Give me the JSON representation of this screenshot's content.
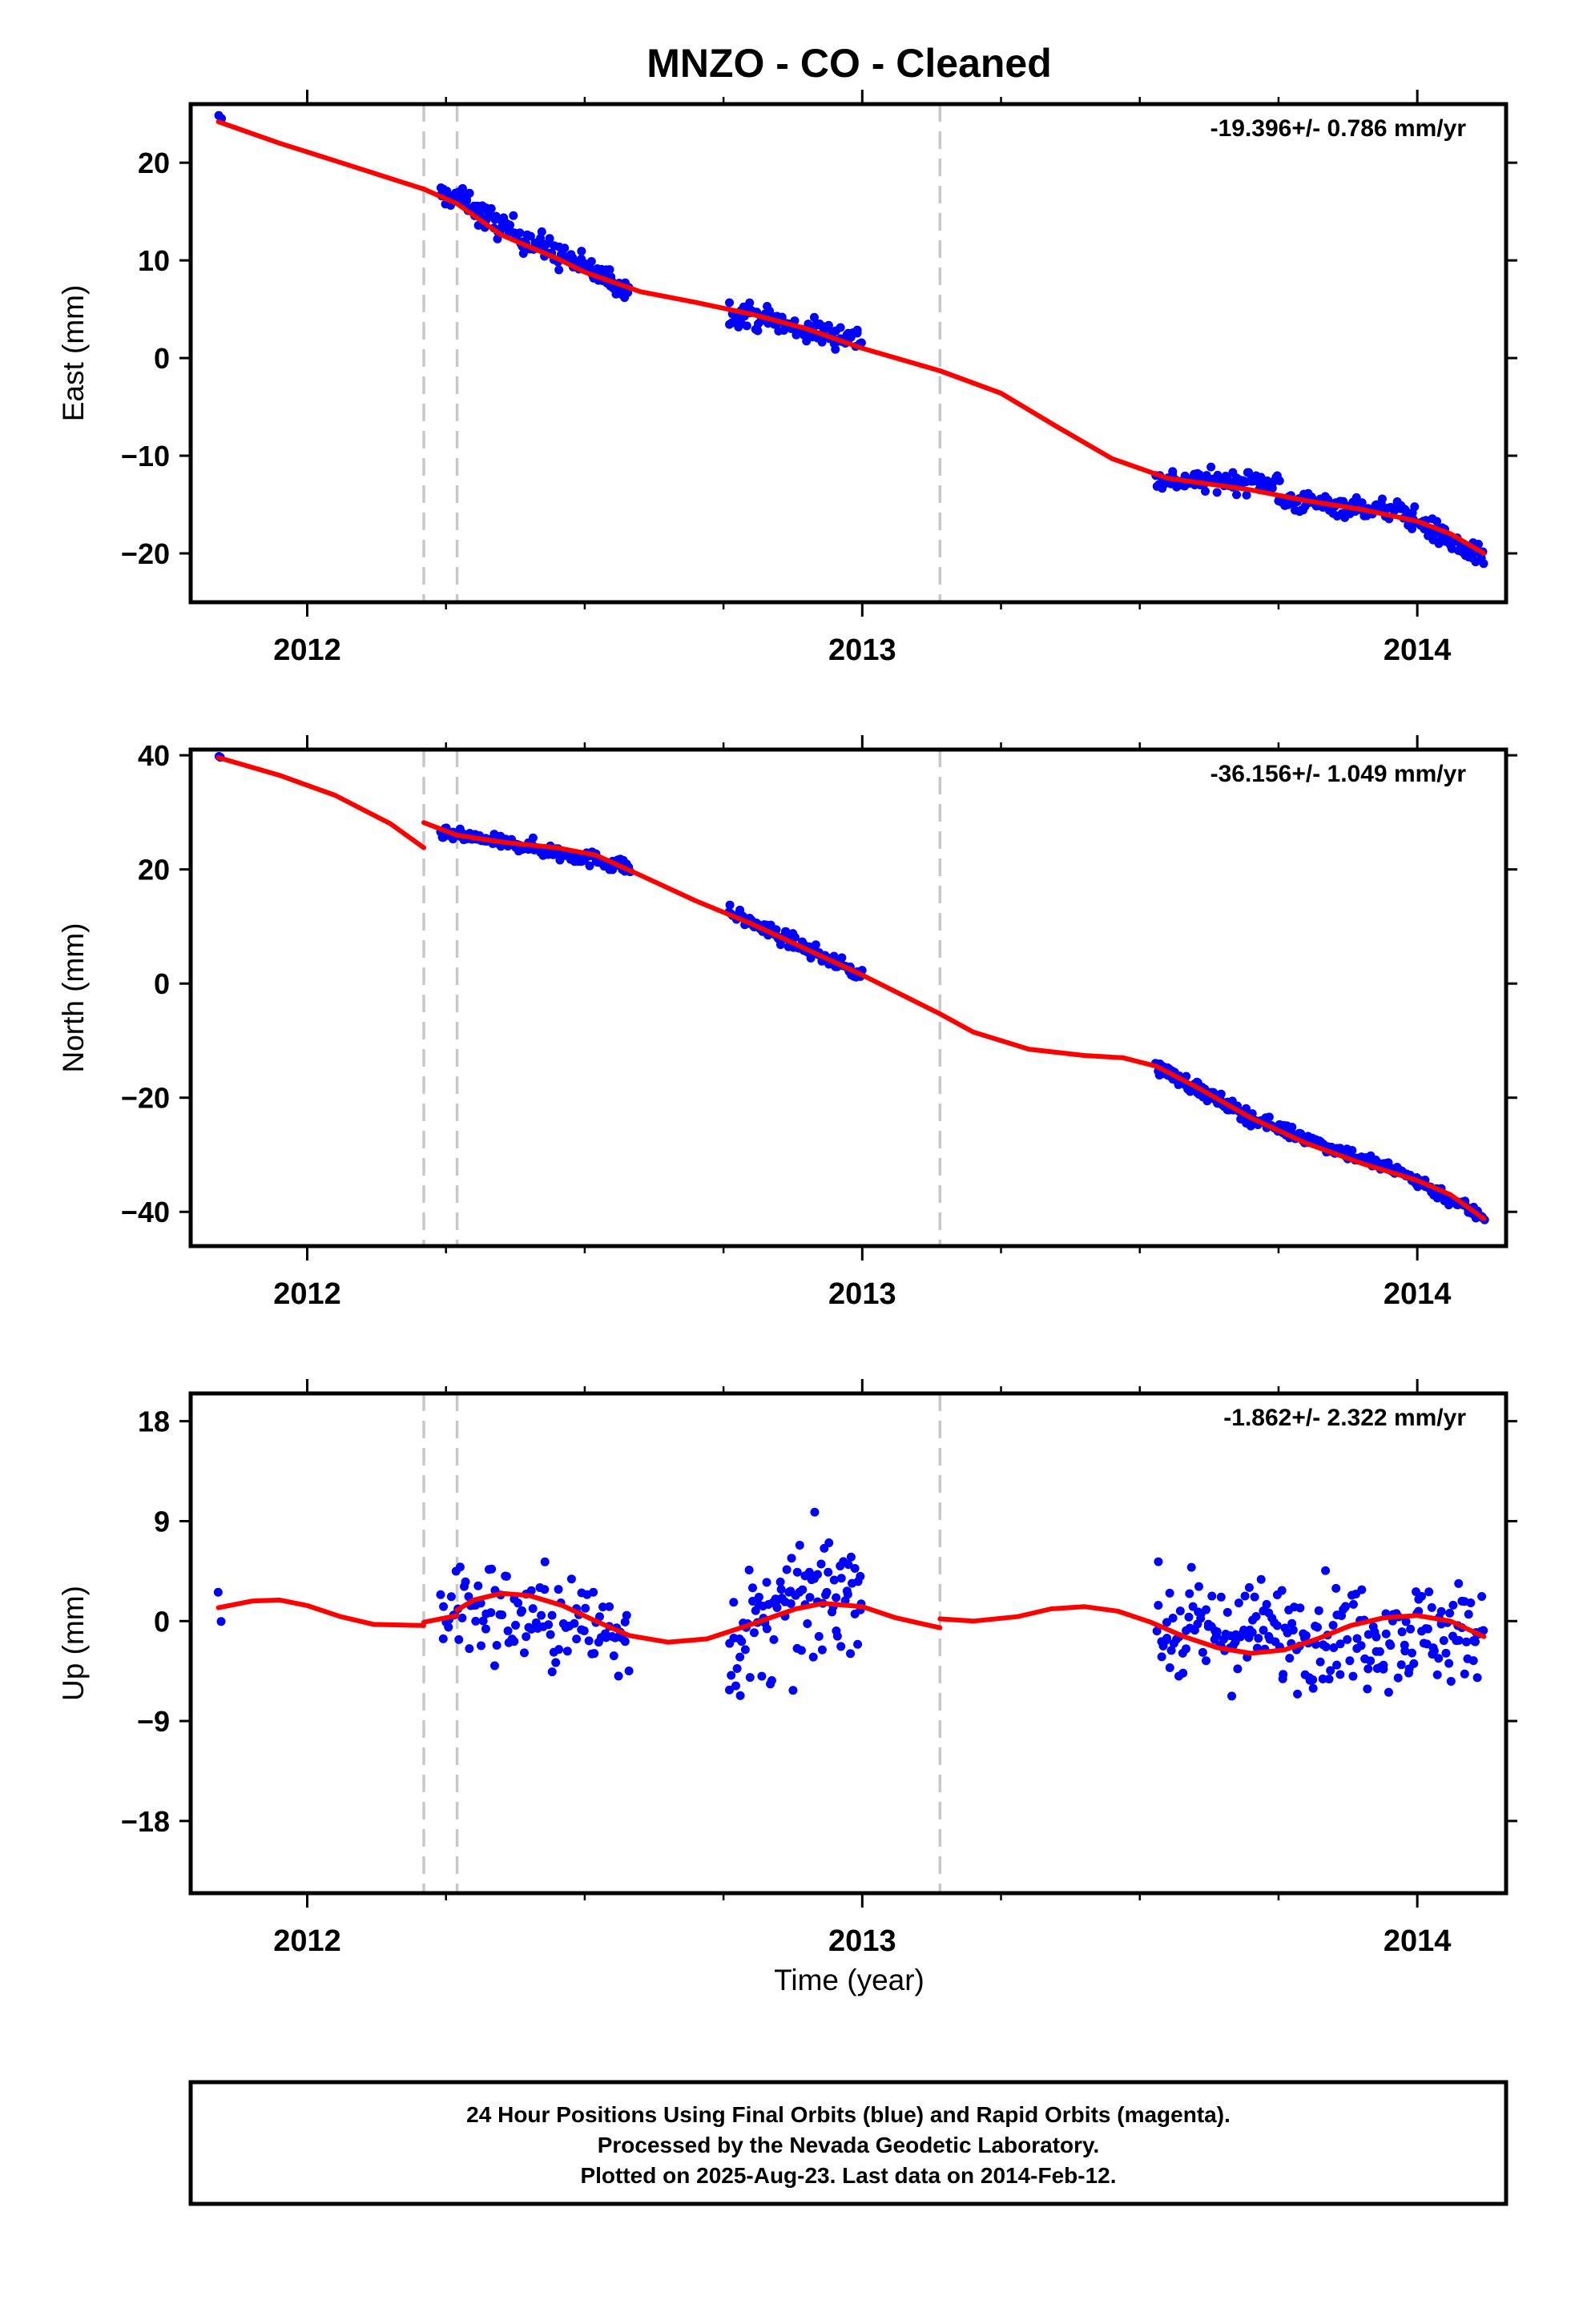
{
  "title": "MNZO  - CO - Cleaned",
  "xlabel": "Time (year)",
  "x_ticks": [
    2012,
    2013,
    2014
  ],
  "x_tick_labels": [
    "2012",
    "2013",
    "2014"
  ],
  "xlim": [
    2011.79,
    2014.16
  ],
  "colors": {
    "points": "#0000ff",
    "model": "#ff0000",
    "breaks": "#c8c8c8",
    "frame": "#000000"
  },
  "break_lines": [
    2012.21,
    2012.27,
    2013.14
  ],
  "footer": {
    "lines": [
      "24 Hour Positions Using Final Orbits (blue) and Rapid Orbits (magenta).",
      "Processed by the Nevada Geodetic Laboratory.",
      "Plotted on 2025-Aug-23. Last data on 2014-Feb-12."
    ]
  },
  "chart_data": [
    {
      "type": "scatter",
      "component": "east",
      "ylabel": "East (mm)",
      "rate_label": "-19.396+/- 0.786 mm/yr",
      "ylim": [
        -25,
        26
      ],
      "y_ticks": [
        20,
        10,
        0,
        -10,
        -20
      ],
      "y_tick_labels": [
        "20",
        "10",
        "0",
        "−10",
        "−20"
      ],
      "x_ticks": [
        2012,
        2013,
        2014
      ],
      "x_tick_labels": [
        "2012",
        "2013",
        "2014"
      ],
      "model": {
        "segments": [
          [
            [
              2011.84,
              24.2
            ],
            [
              2011.95,
              22.0
            ],
            [
              2012.05,
              20.2
            ],
            [
              2012.21,
              17.3
            ]
          ],
          [
            [
              2012.21,
              17.3
            ],
            [
              2012.27,
              15.8
            ]
          ],
          [
            [
              2012.27,
              15.8
            ],
            [
              2012.35,
              12.6
            ],
            [
              2012.45,
              10.2
            ],
            [
              2012.5,
              8.8
            ],
            [
              2012.6,
              6.8
            ],
            [
              2012.7,
              5.7
            ],
            [
              2012.8,
              4.5
            ],
            [
              2012.9,
              3.0
            ],
            [
              2013.0,
              1.0
            ],
            [
              2013.14,
              -1.3
            ]
          ],
          [
            [
              2013.14,
              -1.3
            ],
            [
              2013.25,
              -3.6
            ],
            [
              2013.35,
              -7.0
            ],
            [
              2013.45,
              -10.3
            ],
            [
              2013.55,
              -12.3
            ],
            [
              2013.7,
              -13.5
            ],
            [
              2013.8,
              -14.6
            ],
            [
              2013.9,
              -15.5
            ],
            [
              2014.0,
              -16.7
            ],
            [
              2014.06,
              -18.0
            ],
            [
              2014.12,
              -20.0
            ]
          ]
        ]
      },
      "clusters": [
        {
          "x0": 2011.84,
          "x1": 2011.845,
          "y0": 24.4,
          "y1": 24.1,
          "spread": 1.0,
          "n": 2
        },
        {
          "x0": 2012.24,
          "x1": 2012.3,
          "y0": 16.8,
          "y1": 15.8,
          "spread": 1.3,
          "n": 32
        },
        {
          "x0": 2012.3,
          "x1": 2012.46,
          "y0": 15.0,
          "y1": 10.3,
          "spread": 1.7,
          "n": 70
        },
        {
          "x0": 2012.46,
          "x1": 2012.58,
          "y0": 10.5,
          "y1": 6.9,
          "spread": 1.5,
          "n": 50
        },
        {
          "x0": 2012.76,
          "x1": 2012.86,
          "y0": 4.8,
          "y1": 3.6,
          "spread": 1.5,
          "n": 40
        },
        {
          "x0": 2012.86,
          "x1": 2013.0,
          "y0": 3.2,
          "y1": 2.0,
          "spread": 1.6,
          "n": 55
        },
        {
          "x0": 2013.53,
          "x1": 2013.75,
          "y0": -12.5,
          "y1": -12.7,
          "spread": 1.3,
          "n": 90
        },
        {
          "x0": 2013.75,
          "x1": 2013.98,
          "y0": -14.6,
          "y1": -15.7,
          "spread": 1.3,
          "n": 90
        },
        {
          "x0": 2013.98,
          "x1": 2014.12,
          "y0": -16.0,
          "y1": -20.8,
          "spread": 1.4,
          "n": 65
        }
      ]
    },
    {
      "type": "scatter",
      "component": "north",
      "ylabel": "North (mm)",
      "rate_label": "-36.156+/- 1.049 mm/yr",
      "ylim": [
        -46,
        41
      ],
      "y_ticks": [
        40,
        20,
        0,
        -20,
        -40
      ],
      "y_tick_labels": [
        "40",
        "20",
        "0",
        "−20",
        "−40"
      ],
      "x_ticks": [
        2012,
        2013,
        2014
      ],
      "x_tick_labels": [
        "2012",
        "2013",
        "2014"
      ],
      "model": {
        "segments": [
          [
            [
              2011.84,
              39.6
            ],
            [
              2011.95,
              36.5
            ],
            [
              2012.05,
              33.0
            ],
            [
              2012.15,
              28.0
            ],
            [
              2012.21,
              23.8
            ]
          ],
          [
            [
              2012.21,
              28.2
            ],
            [
              2012.27,
              26.0
            ]
          ],
          [
            [
              2012.27,
              26.0
            ],
            [
              2012.35,
              24.8
            ],
            [
              2012.45,
              23.8
            ],
            [
              2012.52,
              22.5
            ],
            [
              2012.6,
              19.0
            ],
            [
              2012.7,
              14.5
            ],
            [
              2012.8,
              10.5
            ],
            [
              2012.9,
              6.0
            ],
            [
              2013.0,
              1.5
            ],
            [
              2013.14,
              -5.3
            ]
          ],
          [
            [
              2013.14,
              -5.3
            ],
            [
              2013.2,
              -8.5
            ],
            [
              2013.3,
              -11.5
            ],
            [
              2013.4,
              -12.6
            ],
            [
              2013.47,
              -13.0
            ],
            [
              2013.53,
              -14.5
            ],
            [
              2013.6,
              -18.0
            ],
            [
              2013.7,
              -23.5
            ],
            [
              2013.8,
              -28.0
            ],
            [
              2013.9,
              -31.5
            ],
            [
              2014.0,
              -34.5
            ],
            [
              2014.06,
              -37.0
            ],
            [
              2014.12,
              -41.2
            ]
          ]
        ]
      },
      "clusters": [
        {
          "x0": 2011.84,
          "x1": 2011.845,
          "y0": 40.0,
          "y1": 39.6,
          "spread": 0.6,
          "n": 2
        },
        {
          "x0": 2012.24,
          "x1": 2012.4,
          "y0": 26.4,
          "y1": 24.0,
          "spread": 1.2,
          "n": 80
        },
        {
          "x0": 2012.4,
          "x1": 2012.58,
          "y0": 24.0,
          "y1": 20.5,
          "spread": 1.6,
          "n": 75
        },
        {
          "x0": 2012.76,
          "x1": 2013.0,
          "y0": 12.5,
          "y1": 1.5,
          "spread": 1.5,
          "n": 95
        },
        {
          "x0": 2013.53,
          "x1": 2013.7,
          "y0": -14.5,
          "y1": -23.5,
          "spread": 1.5,
          "n": 80
        },
        {
          "x0": 2013.7,
          "x1": 2013.98,
          "y0": -23.5,
          "y1": -33.5,
          "spread": 1.4,
          "n": 100
        },
        {
          "x0": 2013.98,
          "x1": 2014.12,
          "y0": -33.5,
          "y1": -41.0,
          "spread": 1.4,
          "n": 65
        }
      ]
    },
    {
      "type": "scatter",
      "component": "up",
      "ylabel": "Up (mm)",
      "rate_label": "-1.862+/- 2.322 mm/yr",
      "ylim": [
        -24.5,
        20.5
      ],
      "y_ticks": [
        18,
        9,
        0,
        -9,
        -18
      ],
      "y_tick_labels": [
        "18",
        "9",
        "0",
        "−9",
        "−18"
      ],
      "x_ticks": [
        2012,
        2013,
        2014
      ],
      "x_tick_labels": [
        "2012",
        "2013",
        "2014"
      ],
      "model": {
        "segments": [
          [
            [
              2011.84,
              1.2
            ],
            [
              2011.9,
              1.8
            ],
            [
              2011.95,
              1.9
            ],
            [
              2012.0,
              1.4
            ],
            [
              2012.06,
              0.4
            ],
            [
              2012.12,
              -0.3
            ],
            [
              2012.21,
              -0.4
            ]
          ],
          [
            [
              2012.21,
              -0.1
            ],
            [
              2012.27,
              0.5
            ]
          ],
          [
            [
              2012.27,
              1.0
            ],
            [
              2012.3,
              1.9
            ],
            [
              2012.35,
              2.5
            ],
            [
              2012.4,
              2.3
            ],
            [
              2012.46,
              1.4
            ],
            [
              2012.52,
              0.0
            ],
            [
              2012.58,
              -1.3
            ],
            [
              2012.65,
              -1.9
            ],
            [
              2012.72,
              -1.6
            ],
            [
              2012.8,
              -0.3
            ],
            [
              2012.88,
              1.1
            ],
            [
              2012.93,
              1.6
            ],
            [
              2013.0,
              1.3
            ],
            [
              2013.06,
              0.3
            ],
            [
              2013.14,
              -0.6
            ]
          ],
          [
            [
              2013.14,
              0.2
            ],
            [
              2013.2,
              0.0
            ],
            [
              2013.28,
              0.4
            ],
            [
              2013.34,
              1.1
            ],
            [
              2013.4,
              1.3
            ],
            [
              2013.46,
              0.9
            ],
            [
              2013.52,
              -0.1
            ],
            [
              2013.58,
              -1.4
            ],
            [
              2013.64,
              -2.4
            ],
            [
              2013.7,
              -2.9
            ],
            [
              2013.76,
              -2.6
            ],
            [
              2013.82,
              -1.6
            ],
            [
              2013.88,
              -0.4
            ],
            [
              2013.94,
              0.3
            ],
            [
              2014.0,
              0.5
            ],
            [
              2014.06,
              0.0
            ],
            [
              2014.12,
              -1.4
            ]
          ]
        ]
      },
      "clusters": [
        {
          "x0": 2011.84,
          "x1": 2011.845,
          "y0": 2.7,
          "y1": 0.0,
          "spread": 0.2,
          "n": 2
        },
        {
          "x0": 2012.24,
          "x1": 2012.58,
          "y0": 1.5,
          "y1": -1.0,
          "spread": 5.5,
          "n": 110
        },
        {
          "x0": 2012.76,
          "x1": 2013.0,
          "y0": -2.0,
          "y1": 4.0,
          "spread": 6.5,
          "n": 100
        },
        {
          "x0": 2013.53,
          "x1": 2014.12,
          "y0": -1.0,
          "y1": -1.0,
          "spread": 5.5,
          "n": 230
        }
      ]
    }
  ]
}
